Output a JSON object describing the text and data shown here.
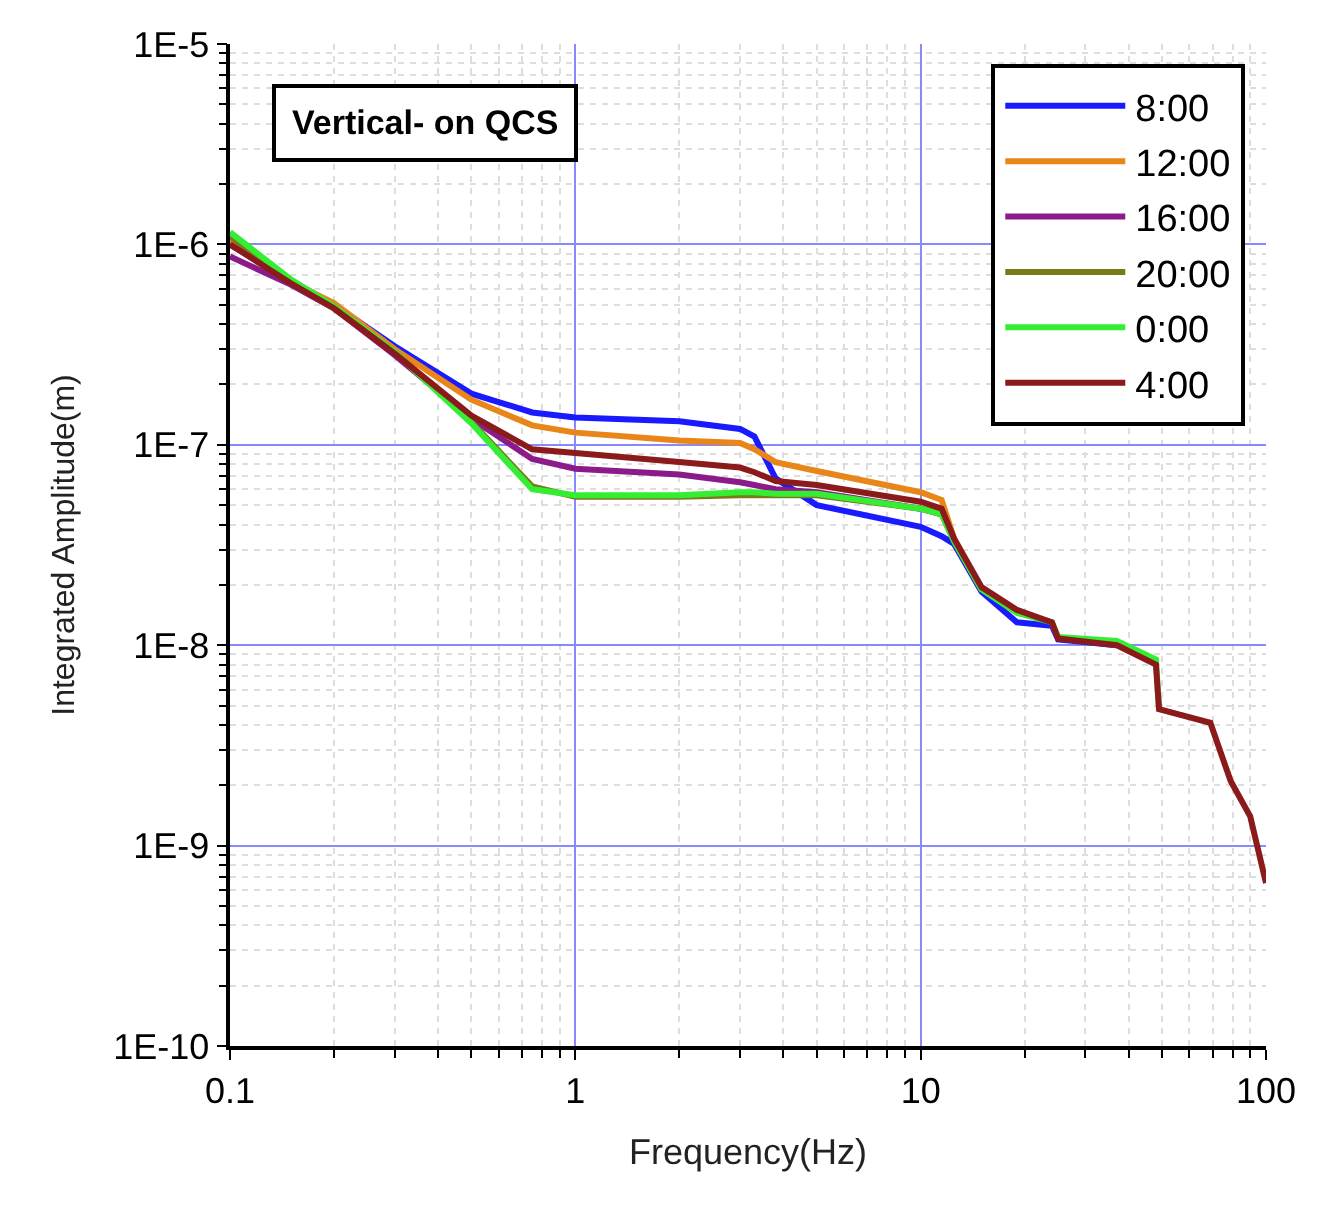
{
  "chart_data": {
    "type": "line",
    "xlabel": "Frequency(Hz)",
    "ylabel": "Integrated Amplitude(m)",
    "annotations": [
      "Vertical- on QCS"
    ],
    "log": "xy",
    "grid": true,
    "legend": "top right",
    "line_style": "solid",
    "xlim": [
      0.1,
      100
    ],
    "xticks": [
      0.1,
      1,
      10,
      100
    ],
    "ylim": [
      1e-10,
      1e-05
    ],
    "yticks": [
      {
        "value": 1e-10,
        "label": "1E-10"
      },
      {
        "value": 1e-09,
        "label": "1E-9"
      },
      {
        "value": 1e-08,
        "label": "1E-8"
      },
      {
        "value": 1e-07,
        "label": "1E-7"
      },
      {
        "value": 1e-06,
        "label": "1E-6"
      },
      {
        "value": 1e-05,
        "label": "1E-5"
      }
    ],
    "x": [
      0.1,
      0.15,
      0.2,
      0.3,
      0.5,
      0.75,
      1,
      2,
      3,
      3.3,
      3.8,
      5,
      10,
      11.5,
      12.5,
      15,
      19,
      24,
      25,
      37,
      48,
      49,
      69,
      79,
      90,
      100
    ],
    "series": [
      {
        "name": "8:00",
        "color": "#1a1aff",
        "values": [
          1e-06,
          6.6e-07,
          5e-07,
          3.1e-07,
          1.8e-07,
          1.45e-07,
          1.37e-07,
          1.31e-07,
          1.2e-07,
          1.1e-07,
          6.8e-08,
          5e-08,
          3.9e-08,
          3.5e-08,
          3.2e-08,
          1.85e-08,
          1.3e-08,
          1.25e-08,
          1.07e-08,
          1e-08,
          null,
          null,
          null,
          null,
          null,
          null
        ]
      },
      {
        "name": "12:00",
        "color": "#e8861a",
        "values": [
          1.05e-06,
          6.5e-07,
          5.1e-07,
          3e-07,
          1.68e-07,
          1.25e-07,
          1.15e-07,
          1.05e-07,
          1.02e-07,
          9.5e-08,
          8.2e-08,
          7.4e-08,
          5.8e-08,
          5.3e-08,
          3.4e-08,
          1.9e-08,
          null,
          null,
          null,
          null,
          null,
          null,
          null,
          null,
          null,
          null
        ]
      },
      {
        "name": "16:00",
        "color": "#8b1a8b",
        "values": [
          8.7e-07,
          6.3e-07,
          4.8e-07,
          2.8e-07,
          1.35e-07,
          8.5e-08,
          7.6e-08,
          7.1e-08,
          6.5e-08,
          6.3e-08,
          6e-08,
          5.8e-08,
          4.8e-08,
          4.5e-08,
          null,
          null,
          null,
          null,
          null,
          null,
          null,
          null,
          null,
          null,
          null,
          null
        ]
      },
      {
        "name": "20:00",
        "color": "#7a7a1a",
        "values": [
          1.1e-06,
          6.5e-07,
          4.8e-07,
          2.9e-07,
          1.3e-07,
          6.2e-08,
          5.5e-08,
          5.5e-08,
          5.6e-08,
          5.6e-08,
          5.6e-08,
          5.6e-08,
          4.8e-08,
          4.5e-08,
          3.3e-08,
          1.9e-08,
          null,
          null,
          null,
          null,
          null,
          null,
          null,
          null,
          null,
          null
        ]
      },
      {
        "name": "0:00",
        "color": "#33ee33",
        "values": [
          1.15e-06,
          6.7e-07,
          4.9e-07,
          2.9e-07,
          1.28e-07,
          6e-08,
          5.6e-08,
          5.6e-08,
          5.8e-08,
          5.8e-08,
          5.7e-08,
          5.7e-08,
          4.8e-08,
          4.5e-08,
          3.3e-08,
          1.9e-08,
          1.45e-08,
          1.3e-08,
          1.1e-08,
          1.05e-08,
          8.5e-09,
          4.8e-09,
          null,
          null,
          null,
          null
        ]
      },
      {
        "name": "4:00",
        "color": "#8b1a1a",
        "values": [
          1e-06,
          6.4e-07,
          4.8e-07,
          2.85e-07,
          1.4e-07,
          9.5e-08,
          9.1e-08,
          8.2e-08,
          7.7e-08,
          7.3e-08,
          6.6e-08,
          6.3e-08,
          5.2e-08,
          4.8e-08,
          3.4e-08,
          1.95e-08,
          1.5e-08,
          1.3e-08,
          1.08e-08,
          1e-08,
          8e-09,
          4.8e-09,
          4.1e-09,
          2.1e-09,
          1.4e-09,
          6.5e-10
        ]
      }
    ]
  }
}
